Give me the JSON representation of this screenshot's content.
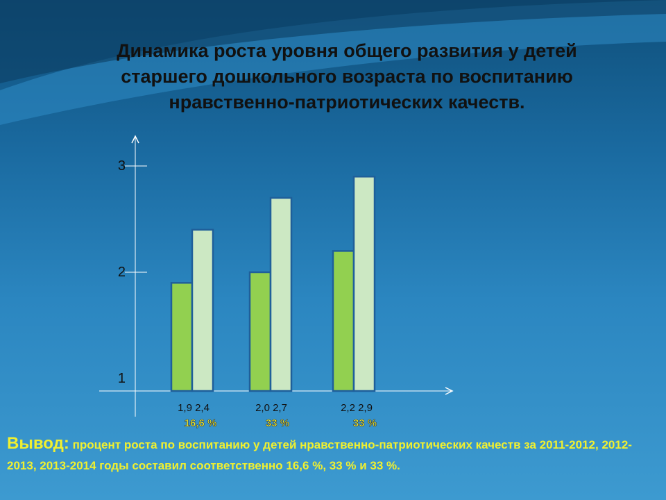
{
  "title": {
    "line1": "Динамика роста  уровня  общего развития у  детей",
    "line2": "старшего дошкольного возраста  по воспитанию",
    "line3": "нравственно-патриотических качеств."
  },
  "chart_data": {
    "type": "bar",
    "title": "",
    "xlabel": "",
    "ylabel": "",
    "ylim": [
      1,
      3
    ],
    "yticks": [
      "1",
      "2",
      "3"
    ],
    "categories": [
      "",
      "",
      ""
    ],
    "series": [
      {
        "values": [
          1.9,
          2.0,
          2.2
        ],
        "color": "#92d050"
      },
      {
        "values": [
          2.4,
          2.7,
          2.9
        ],
        "color": "#cce8c3"
      }
    ],
    "value_labels": [
      "1,9   2,4",
      "2,0  2,7",
      "2,2  2,9"
    ],
    "percent_labels": [
      "16,6 %",
      "33 %",
      "33 %"
    ],
    "grid": false,
    "legend": "none"
  },
  "conclusion": {
    "lead": "Вывод:",
    "text": " процент роста по воспитанию у детей  нравственно-патриотических качеств за 2011-2012, 2012-2013, 2013-2014 годы составил соответственно 16,6 %, 33 % и 33 %."
  },
  "colors": {
    "title_text": "#111111",
    "conclusion_text": "#f0f030",
    "axis": "#ffffff",
    "bar_border": "#1f5f9a"
  }
}
